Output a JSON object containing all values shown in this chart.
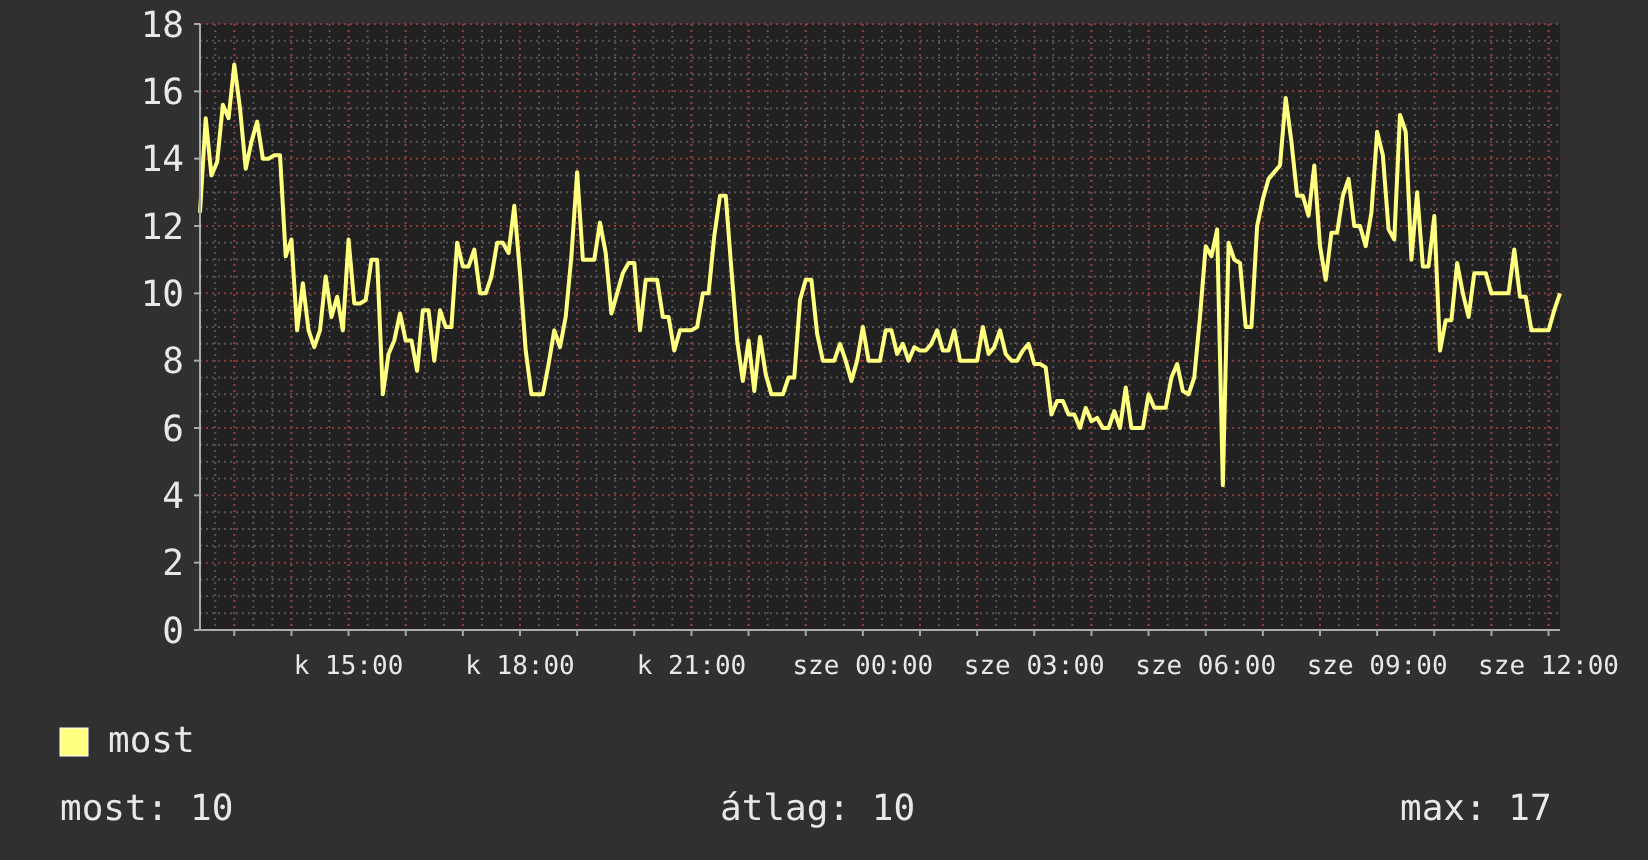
{
  "chart_data": {
    "type": "line",
    "ylim": [
      0,
      18
    ],
    "yticks": [
      0,
      2,
      4,
      6,
      8,
      10,
      12,
      14,
      16,
      18
    ],
    "categories": [
      null,
      null,
      null,
      null,
      null,
      null,
      null,
      null,
      null,
      null,
      null,
      null,
      null,
      null,
      null,
      null,
      null,
      null,
      null,
      null,
      null,
      null,
      null,
      null,
      null,
      null,
      "k 15:00",
      null,
      null,
      null,
      null,
      null,
      null,
      null,
      null,
      null,
      null,
      null,
      null,
      null,
      null,
      null,
      null,
      null,
      null,
      null,
      null,
      null,
      null,
      null,
      null,
      null,
      null,
      null,
      null,
      null,
      "k 18:00",
      null,
      null,
      null,
      null,
      null,
      null,
      null,
      null,
      null,
      null,
      null,
      null,
      null,
      null,
      null,
      null,
      null,
      null,
      null,
      null,
      null,
      null,
      null,
      null,
      null,
      null,
      null,
      null,
      null,
      "k 21:00",
      null,
      null,
      null,
      null,
      null,
      null,
      null,
      null,
      null,
      null,
      null,
      null,
      null,
      null,
      null,
      null,
      null,
      null,
      null,
      null,
      null,
      null,
      null,
      null,
      null,
      null,
      null,
      null,
      null,
      "sze 00:00",
      null,
      null,
      null,
      null,
      null,
      null,
      null,
      null,
      null,
      null,
      null,
      null,
      null,
      null,
      null,
      null,
      null,
      null,
      null,
      null,
      null,
      null,
      null,
      null,
      null,
      null,
      null,
      null,
      null,
      "sze 03:00",
      null,
      null,
      null,
      null,
      null,
      null,
      null,
      null,
      null,
      null,
      null,
      null,
      null,
      null,
      null,
      null,
      null,
      null,
      null,
      null,
      null,
      null,
      null,
      null,
      null,
      null,
      null,
      null,
      null,
      "sze 06:00",
      null,
      null,
      null,
      null,
      null,
      null,
      null,
      null,
      null,
      null,
      null,
      null,
      null,
      null,
      null,
      null,
      null,
      null,
      null,
      null,
      null,
      null,
      null,
      null,
      null,
      null,
      null,
      null,
      null,
      "sze 09:00",
      null,
      null,
      null,
      null,
      null,
      null,
      null,
      null,
      null,
      null,
      null,
      null,
      null,
      null,
      null,
      null,
      null,
      null,
      null,
      null,
      null,
      null,
      null,
      null,
      null,
      null,
      null,
      null,
      null,
      "sze 12:00",
      null,
      null
    ],
    "grid": true,
    "legend": "bottom left",
    "marker": "none",
    "line_style": "solid",
    "annotations": [
      "most: 10",
      "átlag: 10",
      "max: 17"
    ],
    "series": [
      {
        "name": "most",
        "color": "#ffff80",
        "values": [
          12.4,
          15.2,
          13.5,
          13.9,
          15.6,
          15.2,
          16.8,
          15.5,
          13.7,
          14.5,
          15.1,
          14.0,
          14.0,
          14.1,
          14.1,
          11.1,
          11.6,
          8.9,
          10.3,
          8.9,
          8.4,
          8.9,
          10.5,
          9.3,
          9.9,
          8.9,
          11.6,
          9.7,
          9.7,
          9.8,
          11.0,
          11.0,
          7.0,
          8.2,
          8.6,
          9.4,
          8.6,
          8.6,
          7.7,
          9.5,
          9.5,
          8.0,
          9.5,
          9.0,
          9.0,
          11.5,
          10.8,
          10.8,
          11.3,
          10.0,
          10.0,
          10.5,
          11.5,
          11.5,
          11.2,
          12.6,
          10.6,
          8.3,
          7.0,
          7.0,
          7.0,
          7.9,
          8.9,
          8.4,
          9.3,
          11.1,
          13.6,
          11.0,
          11.0,
          11.0,
          12.1,
          11.2,
          9.4,
          10.0,
          10.6,
          10.9,
          10.9,
          8.9,
          10.4,
          10.4,
          10.4,
          9.3,
          9.3,
          8.3,
          8.9,
          8.9,
          8.9,
          9.0,
          10.0,
          10.0,
          11.7,
          12.9,
          12.9,
          10.7,
          8.6,
          7.4,
          8.6,
          7.1,
          8.7,
          7.6,
          7.0,
          7.0,
          7.0,
          7.5,
          7.5,
          9.8,
          10.4,
          10.4,
          8.8,
          8.0,
          8.0,
          8.0,
          8.5,
          8.0,
          7.4,
          8.0,
          9.0,
          8.0,
          8.0,
          8.0,
          8.9,
          8.9,
          8.2,
          8.5,
          8.0,
          8.4,
          8.3,
          8.3,
          8.5,
          8.9,
          8.3,
          8.3,
          8.9,
          8.0,
          8.0,
          8.0,
          8.0,
          9.0,
          8.2,
          8.4,
          8.9,
          8.2,
          8.0,
          8.0,
          8.3,
          8.5,
          7.9,
          7.9,
          7.8,
          6.4,
          6.8,
          6.8,
          6.4,
          6.4,
          6.0,
          6.6,
          6.2,
          6.3,
          6.0,
          6.0,
          6.5,
          6.0,
          7.2,
          6.0,
          6.0,
          6.0,
          7.0,
          6.6,
          6.6,
          6.6,
          7.5,
          7.9,
          7.1,
          7.0,
          7.5,
          9.3,
          11.4,
          11.1,
          11.9,
          4.3,
          11.5,
          11.0,
          10.9,
          9.0,
          9.0,
          12.0,
          12.8,
          13.4,
          13.6,
          13.8,
          15.8,
          14.5,
          12.9,
          12.9,
          12.3,
          13.8,
          11.4,
          10.4,
          11.8,
          11.8,
          12.9,
          13.4,
          12.0,
          12.0,
          11.4,
          12.4,
          14.8,
          14.1,
          11.9,
          11.6,
          15.3,
          14.8,
          11.0,
          13.0,
          10.8,
          10.8,
          12.3,
          8.3,
          9.2,
          9.2,
          10.9,
          10.0,
          9.3,
          10.6,
          10.6,
          10.6,
          10.0,
          10.0,
          10.0,
          10.0,
          11.3,
          9.9,
          9.9,
          8.9,
          8.9,
          8.9,
          8.9,
          9.5,
          10.0
        ]
      }
    ]
  }
}
